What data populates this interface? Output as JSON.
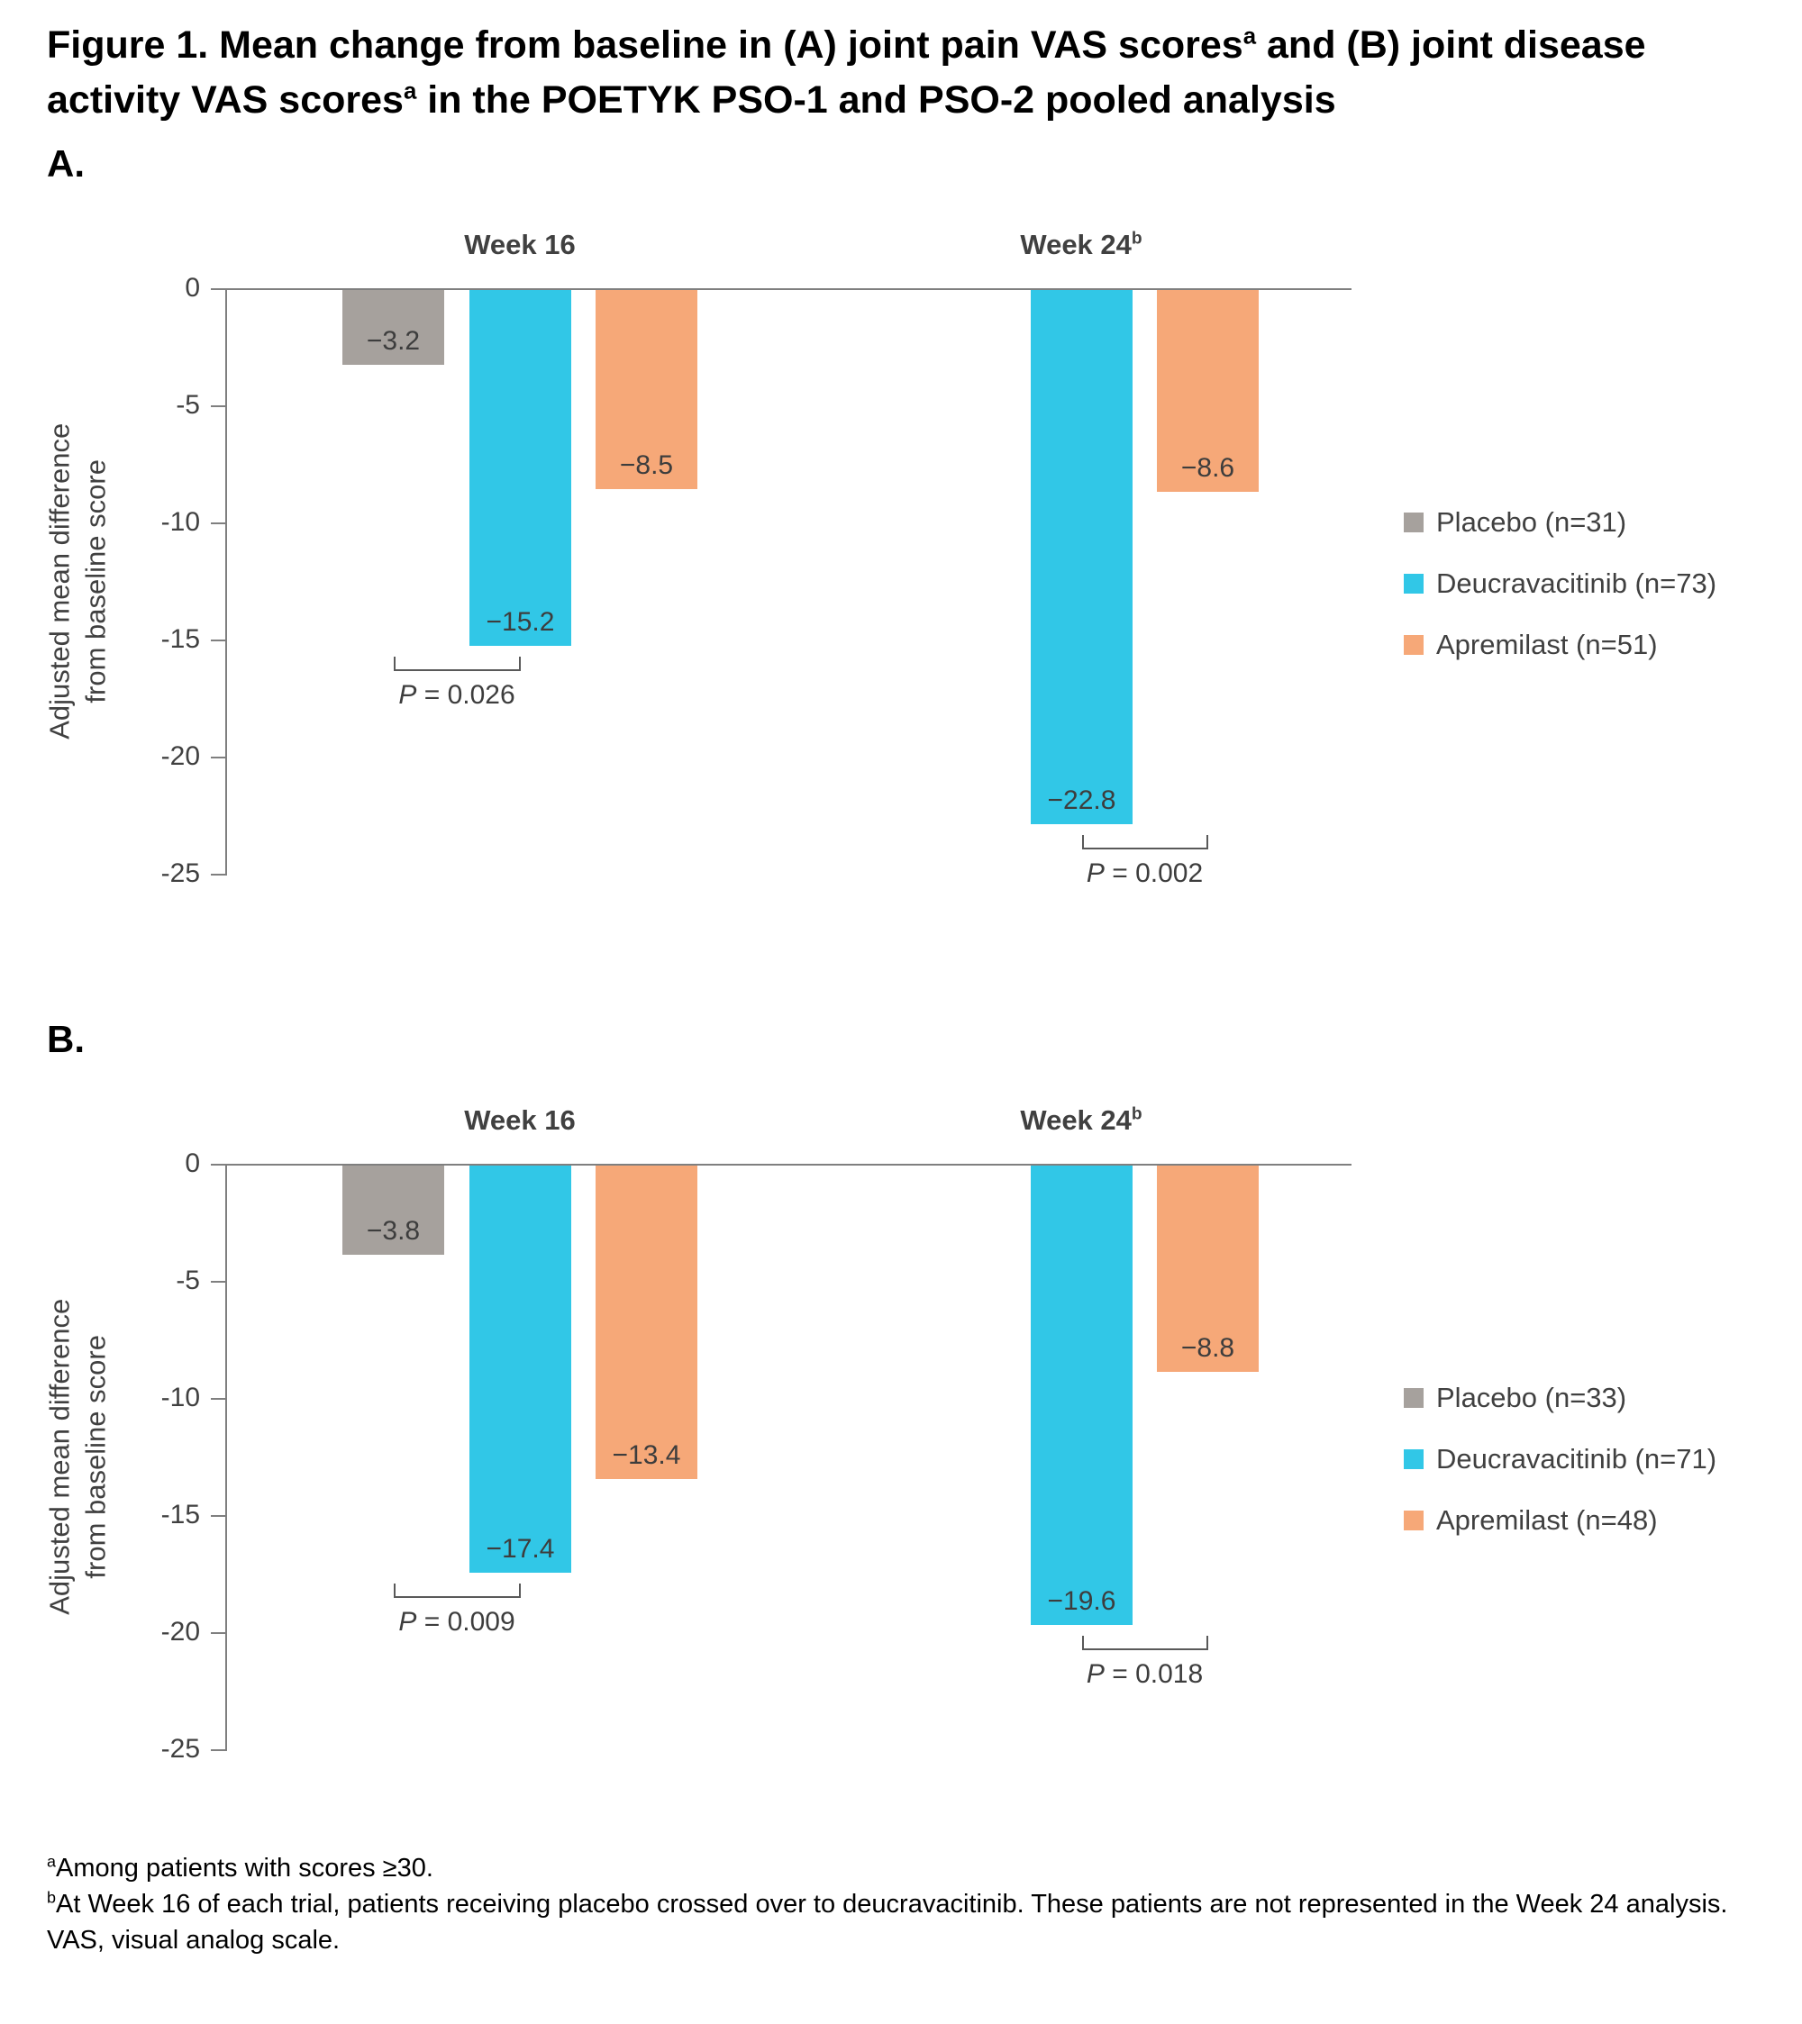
{
  "title": {
    "part1": "Figure 1. Mean change from baseline in (A) joint pain VAS scores",
    "sup1": "a",
    "part2": " and (B) joint disease activity VAS scores",
    "sup2": "a",
    "part3": " in the POETYK PSO-1 and PSO-2 pooled analysis"
  },
  "panels": [
    {
      "label": "A."
    },
    {
      "label": "B."
    }
  ],
  "colors": {
    "series": {
      "Placebo": "#a6a19d",
      "Deucravacitinib": "#31c7e7",
      "Apremilast": "#f6a878"
    },
    "axis": "#7f7f7f",
    "text": "#404040"
  },
  "chart_data": [
    {
      "type": "bar",
      "panel": "A",
      "ylabel_lines": [
        "Adjusted mean difference",
        "from baseline score"
      ],
      "ylim": [
        -25,
        0
      ],
      "yticks": [
        0,
        -5,
        -10,
        -15,
        -20,
        -25
      ],
      "groups": [
        {
          "label": "Week 16",
          "sup": "",
          "bars": [
            {
              "series": "Placebo",
              "value": -3.2,
              "slot": 0
            },
            {
              "series": "Deucravacitinib",
              "value": -15.2,
              "slot": 1
            },
            {
              "series": "Apremilast",
              "value": -8.5,
              "slot": 2
            }
          ],
          "comparison": {
            "from_slot": 0,
            "to_slot": 1,
            "label": "P = 0.026"
          }
        },
        {
          "label": "Week 24",
          "sup": "b",
          "bars": [
            {
              "series": "Deucravacitinib",
              "value": -22.8,
              "slot": 1
            },
            {
              "series": "Apremilast",
              "value": -8.6,
              "slot": 2
            }
          ],
          "comparison": {
            "from_slot": 1,
            "to_slot": 2,
            "label": "P = 0.002"
          }
        }
      ],
      "legend": [
        {
          "series": "Placebo",
          "label": "Placebo (n=31)"
        },
        {
          "series": "Deucravacitinib",
          "label": "Deucravacitinib (n=73)"
        },
        {
          "series": "Apremilast",
          "label": "Apremilast (n=51)"
        }
      ]
    },
    {
      "type": "bar",
      "panel": "B",
      "ylabel_lines": [
        "Adjusted mean difference",
        "from baseline score"
      ],
      "ylim": [
        -25,
        0
      ],
      "yticks": [
        0,
        -5,
        -10,
        -15,
        -20,
        -25
      ],
      "groups": [
        {
          "label": "Week 16",
          "sup": "",
          "bars": [
            {
              "series": "Placebo",
              "value": -3.8,
              "slot": 0
            },
            {
              "series": "Deucravacitinib",
              "value": -17.4,
              "slot": 1
            },
            {
              "series": "Apremilast",
              "value": -13.4,
              "slot": 2
            }
          ],
          "comparison": {
            "from_slot": 0,
            "to_slot": 1,
            "label": "P = 0.009"
          }
        },
        {
          "label": "Week 24",
          "sup": "b",
          "bars": [
            {
              "series": "Deucravacitinib",
              "value": -19.6,
              "slot": 1
            },
            {
              "series": "Apremilast",
              "value": -8.8,
              "slot": 2
            }
          ],
          "comparison": {
            "from_slot": 1,
            "to_slot": 2,
            "label": "P = 0.018"
          }
        }
      ],
      "legend": [
        {
          "series": "Placebo",
          "label": "Placebo (n=33)"
        },
        {
          "series": "Deucravacitinib",
          "label": "Deucravacitinib (n=71)"
        },
        {
          "series": "Apremilast",
          "label": "Apremilast (n=48)"
        }
      ]
    }
  ],
  "footnotes": [
    {
      "sup": "a",
      "text": "Among patients with scores ≥30."
    },
    {
      "sup": "b",
      "text": "At Week 16 of each trial, patients receiving placebo crossed over to deucravacitinib. These patients are not represented in the Week 24 analysis."
    },
    {
      "sup": "",
      "text": "VAS, visual analog scale."
    }
  ]
}
